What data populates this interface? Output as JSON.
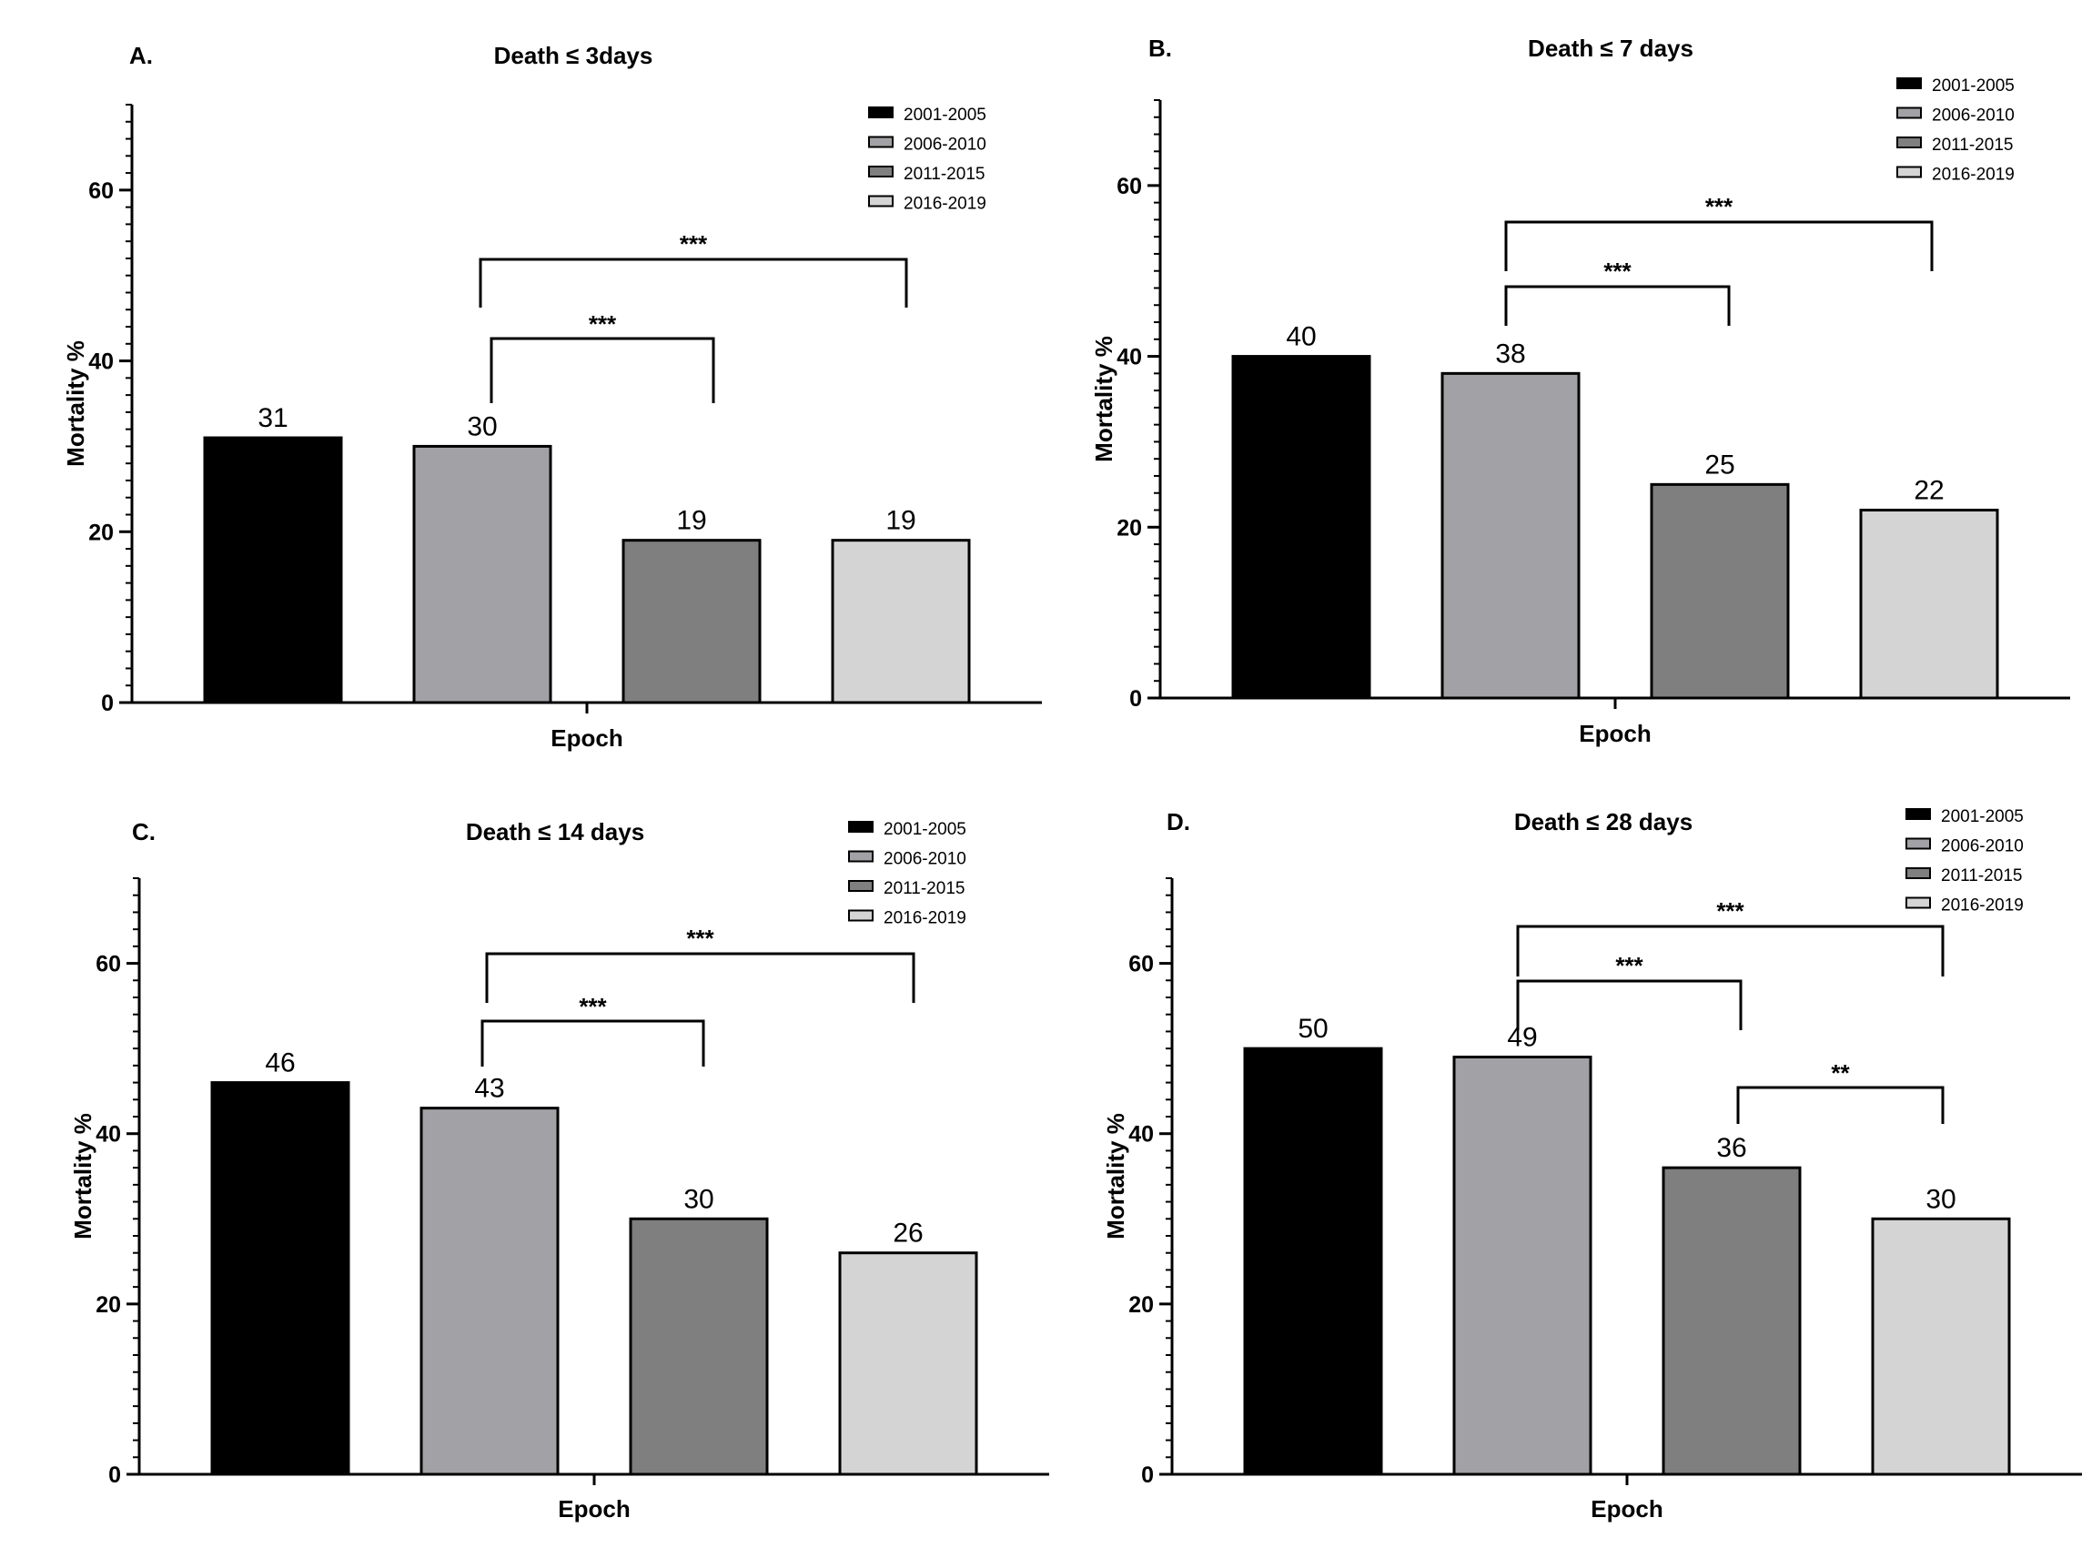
{
  "chart_data": [
    {
      "type": "bar",
      "panel": "A.",
      "title": "Death ≤ 3days",
      "xlabel": "Epoch",
      "ylabel": "Mortality %",
      "ylim": [
        0,
        70
      ],
      "yticks": [
        0,
        20,
        40,
        60
      ],
      "categories": [
        "2001-2005",
        "2006-2010",
        "2011-2015",
        "2016-2019"
      ],
      "values": [
        31,
        30,
        19,
        19
      ],
      "data_labels": [
        "31",
        "30",
        "19",
        "19"
      ],
      "colors": [
        "#000000",
        "#a2a2a6",
        "#7f7f7f",
        "#d4d4d4"
      ],
      "legend": {
        "entries": [
          "2001-2005",
          "2006-2010",
          "2011-2015",
          "2016-2019"
        ],
        "position": "top-right"
      },
      "grid": false,
      "significance": [
        {
          "from": 1,
          "to": 3,
          "label": "***"
        },
        {
          "from": 1,
          "to": 2,
          "label": "***"
        }
      ]
    },
    {
      "type": "bar",
      "panel": "B.",
      "title": "Death ≤ 7 days",
      "xlabel": "Epoch",
      "ylabel": "Mortality %",
      "ylim": [
        0,
        70
      ],
      "yticks": [
        0,
        20,
        40,
        60
      ],
      "categories": [
        "2001-2005",
        "2006-2010",
        "2011-2015",
        "2016-2019"
      ],
      "values": [
        40,
        38,
        25,
        22
      ],
      "data_labels": [
        "40",
        "38",
        "25",
        "22"
      ],
      "colors": [
        "#000000",
        "#a2a2a6",
        "#7f7f7f",
        "#d4d4d4"
      ],
      "legend": {
        "entries": [
          "2001-2005",
          "2006-2010",
          "2011-2015",
          "2016-2019"
        ],
        "position": "top-right"
      },
      "grid": false,
      "significance": [
        {
          "from": 1,
          "to": 3,
          "label": "***"
        },
        {
          "from": 1,
          "to": 2,
          "label": "***"
        }
      ]
    },
    {
      "type": "bar",
      "panel": "C.",
      "title": "Death ≤ 14 days",
      "xlabel": "Epoch",
      "ylabel": "Mortality %",
      "ylim": [
        0,
        70
      ],
      "yticks": [
        0,
        20,
        40,
        60
      ],
      "categories": [
        "2001-2005",
        "2006-2010",
        "2011-2015",
        "2016-2019"
      ],
      "values": [
        46,
        43,
        30,
        26
      ],
      "data_labels": [
        "46",
        "43",
        "30",
        "26"
      ],
      "colors": [
        "#000000",
        "#a2a2a6",
        "#7f7f7f",
        "#d4d4d4"
      ],
      "legend": {
        "entries": [
          "2001-2005",
          "2006-2010",
          "2011-2015",
          "2016-2019"
        ],
        "position": "top-right"
      },
      "grid": false,
      "significance": [
        {
          "from": 1,
          "to": 3,
          "label": "***"
        },
        {
          "from": 1,
          "to": 2,
          "label": "***"
        }
      ]
    },
    {
      "type": "bar",
      "panel": "D.",
      "title": "Death ≤ 28 days",
      "xlabel": "Epoch",
      "ylabel": "Mortality %",
      "ylim": [
        0,
        70
      ],
      "yticks": [
        0,
        20,
        40,
        60
      ],
      "categories": [
        "2001-2005",
        "2006-2010",
        "2011-2015",
        "2016-2019"
      ],
      "values": [
        50,
        49,
        36,
        30
      ],
      "data_labels": [
        "50",
        "49",
        "36",
        "30"
      ],
      "colors": [
        "#000000",
        "#a2a2a6",
        "#7f7f7f",
        "#d4d4d4"
      ],
      "legend": {
        "entries": [
          "2001-2005",
          "2006-2010",
          "2011-2015",
          "2016-2019"
        ],
        "position": "top-right"
      },
      "grid": false,
      "significance": [
        {
          "from": 1,
          "to": 3,
          "label": "***"
        },
        {
          "from": 1,
          "to": 2,
          "label": "***"
        },
        {
          "from": 2,
          "to": 3,
          "label": "**"
        }
      ]
    }
  ]
}
